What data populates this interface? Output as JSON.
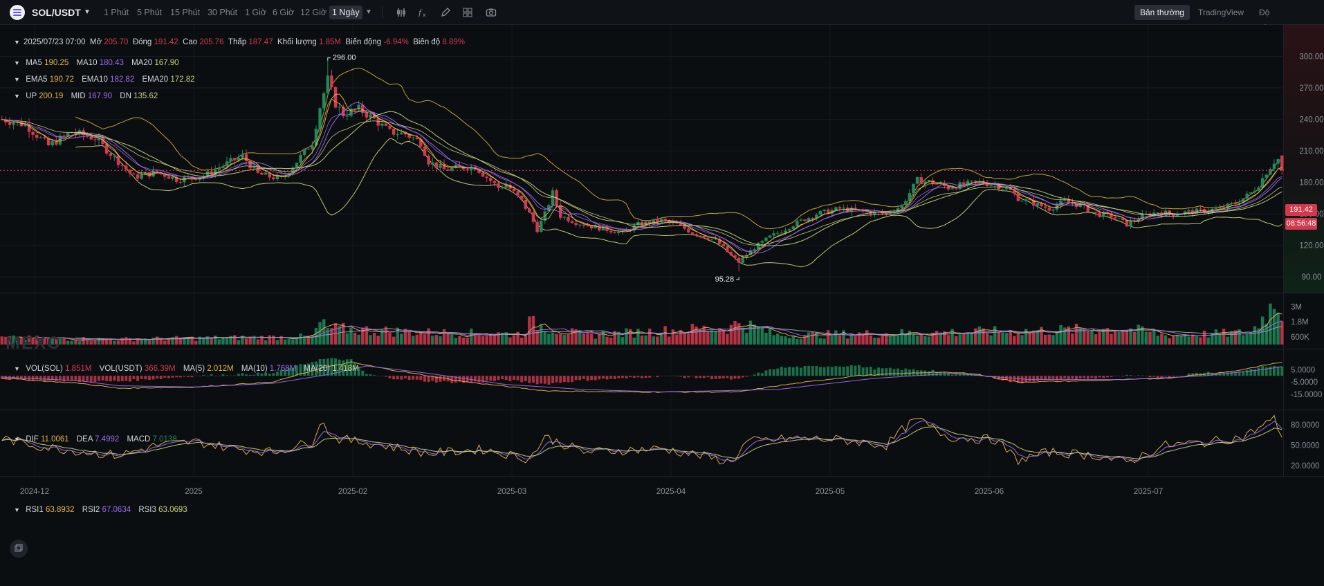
{
  "toolbar": {
    "symbol": "SOL/USDT",
    "timeframes": [
      "1 Phút",
      "5 Phút",
      "15 Phút",
      "30 Phút",
      "1 Giờ",
      "6 Giờ",
      "12 Giờ",
      "1 Ngày"
    ],
    "active_timeframe": "1 Ngày",
    "tools": [
      "indicator-bars-icon",
      "formula-icon",
      "pencil-icon",
      "layout-grid-icon",
      "camera-icon"
    ],
    "modes": [
      "Bản thường",
      "TradingView",
      "Độ sâu"
    ],
    "active_mode": "Bản thường"
  },
  "ohlc_legend": {
    "date": "2025/07/23 07:00",
    "open_label": "Mở",
    "open": "205.70",
    "close_label": "Đóng",
    "close": "191.42",
    "high_label": "Cao",
    "high": "205.76",
    "low_label": "Thấp",
    "low": "187.47",
    "volume_label": "Khối lượng",
    "volume": "1.85M",
    "change_label": "Biến động",
    "change": "-6.94%",
    "amplitude_label": "Biên độ",
    "amplitude": "8.89%"
  },
  "ma_legend": [
    {
      "label": "MA5",
      "value": "190.25"
    },
    {
      "label": "MA10",
      "value": "180.43"
    },
    {
      "label": "MA20",
      "value": "167.90"
    }
  ],
  "ema_legend": [
    {
      "label": "EMA5",
      "value": "190.72"
    },
    {
      "label": "EMA10",
      "value": "182.82"
    },
    {
      "label": "EMA20",
      "value": "172.82"
    }
  ],
  "boll_legend": [
    {
      "label": "UP",
      "value": "200.19"
    },
    {
      "label": "MID",
      "value": "167.90"
    },
    {
      "label": "DN",
      "value": "135.62"
    }
  ],
  "vol_legend": [
    {
      "label": "VOL(SOL)",
      "value": "1.851M"
    },
    {
      "label": "VOL(USDT)",
      "value": "366.39M"
    },
    {
      "label": "MA(5)",
      "value": "2.012M"
    },
    {
      "label": "MA(10)",
      "value": "1.768M"
    },
    {
      "label": "MA(20)",
      "value": "1.418M"
    }
  ],
  "macd_legend": [
    {
      "label": "DIF",
      "value": "11.0061"
    },
    {
      "label": "DEA",
      "value": "7.4992"
    },
    {
      "label": "MACD",
      "value": "7.0138"
    }
  ],
  "rsi_legend": [
    {
      "label": "RSI1",
      "value": "63.8932"
    },
    {
      "label": "RSI2",
      "value": "67.0634"
    },
    {
      "label": "RSI3",
      "value": "63.0693"
    }
  ],
  "price_tags": {
    "last_price": "191.42",
    "countdown": "08:56:48"
  },
  "watermark": "MEXC",
  "colors": {
    "up": "#1f8a5a",
    "down": "#d2394d",
    "ma5": "#e6b34a",
    "ma10": "#9b6cf0",
    "ma20": "#c7d27a",
    "boll": "#cfa83c",
    "vol_ma5": "#e6b34a",
    "vol_ma10": "#9b6cf0",
    "vol_ma20": "#9da7b3"
  },
  "chart_data": {
    "type": "candlestick",
    "x_tick_labels": [
      "2024-12",
      "2025",
      "2025-02",
      "2025-03",
      "2025-04",
      "2025-05",
      "2025-06",
      "2025-07"
    ],
    "price_axis": {
      "ticks": [
        "300.00",
        "270.00",
        "240.00",
        "210.00",
        "180.00",
        "150.00",
        "120.00",
        "90.00"
      ],
      "range": [
        75,
        330
      ]
    },
    "annotations": {
      "max": "296.00",
      "min": "95.28"
    },
    "volume_axis": {
      "ticks": [
        "3M",
        "1.8M",
        "600K"
      ],
      "range": [
        0,
        4000000
      ]
    },
    "macd_axis": {
      "ticks": [
        "5.0000",
        "-5.0000",
        "-15.0000"
      ],
      "range": [
        -25,
        18
      ]
    },
    "rsi_axis": {
      "ticks": [
        "80.0000",
        "50.0000",
        "20.0000"
      ],
      "range": [
        5,
        100
      ]
    },
    "price_path": [
      [
        0,
        240
      ],
      [
        6,
        235
      ],
      [
        12,
        215
      ],
      [
        18,
        228
      ],
      [
        24,
        222
      ],
      [
        30,
        200
      ],
      [
        34,
        185
      ],
      [
        40,
        190
      ],
      [
        45,
        183
      ],
      [
        52,
        186
      ],
      [
        58,
        198
      ],
      [
        62,
        205
      ],
      [
        66,
        188
      ],
      [
        72,
        183
      ],
      [
        76,
        200
      ],
      [
        80,
        218
      ],
      [
        82,
        252
      ],
      [
        84,
        278
      ],
      [
        86,
        255
      ],
      [
        88,
        245
      ],
      [
        92,
        250
      ],
      [
        96,
        240
      ],
      [
        100,
        228
      ],
      [
        104,
        226
      ],
      [
        108,
        218
      ],
      [
        110,
        200
      ],
      [
        114,
        192
      ],
      [
        118,
        194
      ],
      [
        122,
        195
      ],
      [
        124,
        188
      ],
      [
        128,
        175
      ],
      [
        130,
        178
      ],
      [
        134,
        162
      ],
      [
        136,
        150
      ],
      [
        138,
        135
      ],
      [
        140,
        150
      ],
      [
        142,
        170
      ],
      [
        144,
        148
      ],
      [
        148,
        142
      ],
      [
        152,
        138
      ],
      [
        156,
        135
      ],
      [
        160,
        132
      ],
      [
        164,
        140
      ],
      [
        170,
        144
      ],
      [
        174,
        140
      ],
      [
        178,
        132
      ],
      [
        184,
        125
      ],
      [
        188,
        110
      ],
      [
        190,
        104
      ],
      [
        194,
        118
      ],
      [
        198,
        128
      ],
      [
        204,
        140
      ],
      [
        210,
        150
      ],
      [
        216,
        155
      ],
      [
        222,
        152
      ],
      [
        228,
        150
      ],
      [
        232,
        158
      ],
      [
        234,
        170
      ],
      [
        236,
        182
      ],
      [
        240,
        180
      ],
      [
        244,
        175
      ],
      [
        248,
        178
      ],
      [
        252,
        180
      ],
      [
        256,
        178
      ],
      [
        260,
        172
      ],
      [
        262,
        165
      ],
      [
        266,
        160
      ],
      [
        270,
        155
      ],
      [
        274,
        162
      ],
      [
        278,
        158
      ],
      [
        282,
        150
      ],
      [
        286,
        148
      ],
      [
        290,
        140
      ],
      [
        294,
        148
      ],
      [
        298,
        152
      ],
      [
        302,
        150
      ],
      [
        306,
        152
      ],
      [
        310,
        153
      ],
      [
        314,
        155
      ],
      [
        318,
        160
      ],
      [
        320,
        165
      ],
      [
        322,
        170
      ],
      [
        324,
        178
      ],
      [
        326,
        190
      ],
      [
        328,
        200
      ],
      [
        329,
        202
      ],
      [
        330,
        191
      ]
    ],
    "volume_path": [
      [
        0,
        0.5
      ],
      [
        30,
        0.4
      ],
      [
        80,
        0.6
      ],
      [
        82,
        1.6
      ],
      [
        84,
        1.2
      ],
      [
        110,
        0.9
      ],
      [
        134,
        0.8
      ],
      [
        136,
        1.6
      ],
      [
        150,
        0.7
      ],
      [
        188,
        1.3
      ],
      [
        190,
        1.7
      ],
      [
        200,
        0.7
      ],
      [
        240,
        0.9
      ],
      [
        260,
        1.0
      ],
      [
        290,
        1.2
      ],
      [
        300,
        0.7
      ],
      [
        322,
        0.9
      ],
      [
        326,
        2.4
      ],
      [
        328,
        3.1
      ],
      [
        329,
        3.4
      ],
      [
        330,
        1.85
      ]
    ],
    "macd_dif_path": [
      [
        0,
        -2
      ],
      [
        20,
        -6
      ],
      [
        30,
        -10
      ],
      [
        50,
        -9
      ],
      [
        70,
        -5
      ],
      [
        82,
        6
      ],
      [
        90,
        11
      ],
      [
        100,
        5
      ],
      [
        120,
        -5
      ],
      [
        140,
        -12
      ],
      [
        160,
        -13
      ],
      [
        190,
        -13
      ],
      [
        200,
        -8
      ],
      [
        220,
        0
      ],
      [
        240,
        3
      ],
      [
        250,
        2
      ],
      [
        262,
        -5
      ],
      [
        280,
        -4
      ],
      [
        300,
        -2
      ],
      [
        318,
        4
      ],
      [
        328,
        10
      ],
      [
        330,
        11
      ]
    ],
    "macd_dea_path": [
      [
        0,
        -1
      ],
      [
        20,
        -4
      ],
      [
        30,
        -8
      ],
      [
        50,
        -9
      ],
      [
        70,
        -6
      ],
      [
        84,
        1
      ],
      [
        94,
        8
      ],
      [
        110,
        2
      ],
      [
        130,
        -7
      ],
      [
        150,
        -11
      ],
      [
        170,
        -13
      ],
      [
        200,
        -11
      ],
      [
        225,
        -2
      ],
      [
        245,
        2
      ],
      [
        265,
        -3
      ],
      [
        290,
        -3
      ],
      [
        310,
        0
      ],
      [
        325,
        5
      ],
      [
        330,
        7.5
      ]
    ],
    "rsi_path": [
      [
        0,
        60
      ],
      [
        10,
        48
      ],
      [
        22,
        40
      ],
      [
        30,
        35
      ],
      [
        40,
        50
      ],
      [
        50,
        55
      ],
      [
        60,
        45
      ],
      [
        70,
        40
      ],
      [
        80,
        55
      ],
      [
        82,
        85
      ],
      [
        86,
        60
      ],
      [
        96,
        52
      ],
      [
        110,
        38
      ],
      [
        124,
        44
      ],
      [
        136,
        30
      ],
      [
        140,
        62
      ],
      [
        150,
        40
      ],
      [
        170,
        45
      ],
      [
        180,
        35
      ],
      [
        188,
        25
      ],
      [
        192,
        55
      ],
      [
        204,
        60
      ],
      [
        216,
        58
      ],
      [
        228,
        50
      ],
      [
        232,
        72
      ],
      [
        236,
        88
      ],
      [
        244,
        62
      ],
      [
        256,
        58
      ],
      [
        262,
        28
      ],
      [
        270,
        40
      ],
      [
        282,
        35
      ],
      [
        290,
        25
      ],
      [
        300,
        50
      ],
      [
        310,
        54
      ],
      [
        320,
        62
      ],
      [
        326,
        82
      ],
      [
        328,
        88
      ],
      [
        330,
        64
      ]
    ]
  }
}
